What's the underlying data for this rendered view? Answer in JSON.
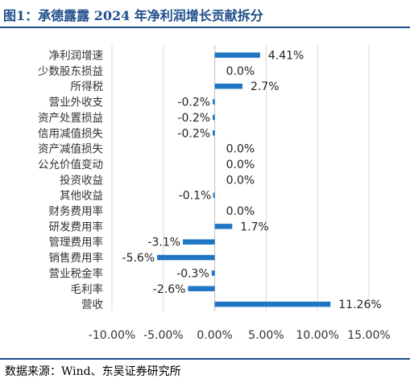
{
  "header": {
    "title": "图1：承德露露 2024 年净利润增长贡献拆分"
  },
  "footer": {
    "source": "数据来源：Wind、东吴证券研究所"
  },
  "colors": {
    "bar": "#1f77c4",
    "grid": "#d9d9d9",
    "axis": "#bfbfbf",
    "rule": "#1f4e8c"
  },
  "chart_data": {
    "type": "bar",
    "orientation": "horizontal",
    "categories": [
      "净利润增速",
      "少数股东损益",
      "所得税",
      "营业外收支",
      "资产处置损益",
      "信用减值损失",
      "资产减值损失",
      "公允价值变动",
      "投资收益",
      "其他收益",
      "财务费用率",
      "研发费用率",
      "管理费用率",
      "销售费用率",
      "营业税金率",
      "毛利率",
      "营收"
    ],
    "values": [
      4.41,
      0.0,
      2.7,
      -0.2,
      -0.2,
      -0.2,
      0.0,
      0.0,
      0.0,
      -0.1,
      0.0,
      1.7,
      -3.1,
      -5.6,
      -0.3,
      -2.6,
      11.26
    ],
    "data_labels": [
      "4.41%",
      "0.0%",
      "2.7%",
      "-0.2%",
      "-0.2%",
      "-0.2%",
      "0.0%",
      "0.0%",
      "0.0%",
      "-0.1%",
      "0.0%",
      "1.7%",
      "-3.1%",
      "-5.6%",
      "-0.3%",
      "-2.6%",
      "11.26%"
    ],
    "xlim": [
      -10,
      15
    ],
    "x_ticks": [
      -10,
      -5,
      0,
      5,
      10,
      15
    ],
    "x_tick_labels": [
      "-10.00%",
      "-5.00%",
      "0.00%",
      "5.00%",
      "10.00%",
      "15.00%"
    ],
    "grid": true,
    "legend": "none",
    "title": "",
    "xlabel": "",
    "ylabel": ""
  }
}
